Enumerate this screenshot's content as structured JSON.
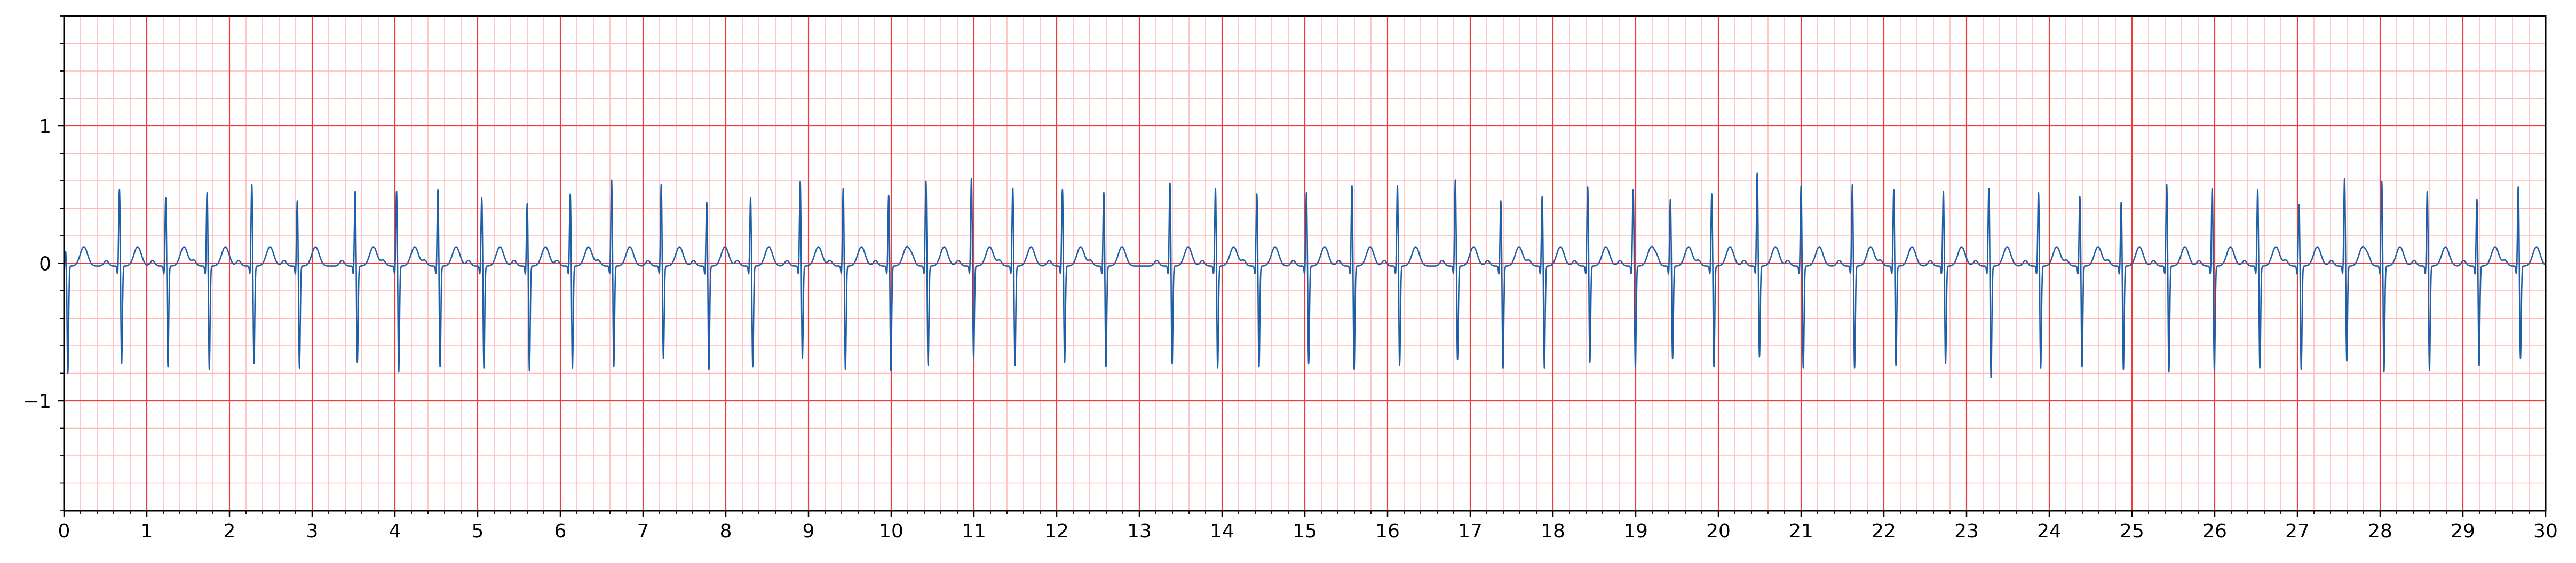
{
  "chart_data": {
    "type": "line",
    "title": "",
    "xlabel": "",
    "ylabel": "",
    "xlim": [
      0,
      30
    ],
    "ylim": [
      -1.8,
      1.8
    ],
    "grid": {
      "major": true,
      "minor": true,
      "major_x_step": 1,
      "major_y_step": 1,
      "minor_x_step": 0.2,
      "minor_y_step": 0.2,
      "major_color": "#ee3b3b",
      "minor_color": "#ffb9b9"
    },
    "x_ticks": [
      {
        "value": 0,
        "label": "0"
      },
      {
        "value": 1,
        "label": "1"
      },
      {
        "value": 2,
        "label": "2"
      },
      {
        "value": 3,
        "label": "3"
      },
      {
        "value": 4,
        "label": "4"
      },
      {
        "value": 5,
        "label": "5"
      },
      {
        "value": 6,
        "label": "6"
      },
      {
        "value": 7,
        "label": "7"
      },
      {
        "value": 8,
        "label": "8"
      },
      {
        "value": 9,
        "label": "9"
      },
      {
        "value": 10,
        "label": "10"
      },
      {
        "value": 11,
        "label": "11"
      },
      {
        "value": 12,
        "label": "12"
      },
      {
        "value": 13,
        "label": "13"
      },
      {
        "value": 14,
        "label": "14"
      },
      {
        "value": 15,
        "label": "15"
      },
      {
        "value": 16,
        "label": "16"
      },
      {
        "value": 17,
        "label": "17"
      },
      {
        "value": 18,
        "label": "18"
      },
      {
        "value": 19,
        "label": "19"
      },
      {
        "value": 20,
        "label": "20"
      },
      {
        "value": 21,
        "label": "21"
      },
      {
        "value": 22,
        "label": "22"
      },
      {
        "value": 23,
        "label": "23"
      },
      {
        "value": 24,
        "label": "24"
      },
      {
        "value": 25,
        "label": "25"
      },
      {
        "value": 26,
        "label": "26"
      },
      {
        "value": 27,
        "label": "27"
      },
      {
        "value": 28,
        "label": "28"
      },
      {
        "value": 29,
        "label": "29"
      },
      {
        "value": 30,
        "label": "30"
      }
    ],
    "y_ticks": [
      {
        "value": 1,
        "label": "1"
      },
      {
        "value": 0,
        "label": "0"
      },
      {
        "value": -1,
        "label": "−1"
      }
    ],
    "series": [
      {
        "color": "#1f5fa8",
        "beat_times": [
          0.02,
          0.67,
          1.23,
          1.73,
          2.27,
          2.82,
          3.52,
          4.02,
          4.52,
          5.05,
          5.6,
          6.12,
          6.62,
          7.22,
          7.77,
          8.3,
          8.9,
          9.42,
          9.97,
          10.42,
          10.97,
          11.47,
          12.07,
          12.57,
          13.37,
          13.92,
          14.42,
          15.02,
          15.57,
          16.12,
          16.82,
          17.37,
          17.87,
          18.42,
          18.97,
          19.42,
          19.92,
          20.47,
          21.0,
          21.62,
          22.12,
          22.72,
          23.27,
          23.87,
          24.37,
          24.87,
          25.42,
          25.97,
          26.52,
          27.02,
          27.57,
          28.02,
          28.57,
          29.17,
          29.67
        ],
        "r_peaks": [
          0.12,
          0.57,
          0.51,
          0.55,
          0.61,
          0.49,
          0.56,
          0.56,
          0.57,
          0.51,
          0.47,
          0.54,
          0.64,
          0.61,
          0.48,
          0.51,
          0.63,
          0.58,
          0.53,
          0.63,
          0.65,
          0.58,
          0.57,
          0.55,
          0.62,
          0.58,
          0.54,
          0.55,
          0.6,
          0.6,
          0.64,
          0.49,
          0.52,
          0.59,
          0.57,
          0.5,
          0.54,
          0.69,
          0.6,
          0.61,
          0.57,
          0.56,
          0.58,
          0.55,
          0.52,
          0.48,
          0.61,
          0.58,
          0.57,
          0.46,
          0.65,
          0.63,
          0.56,
          0.5,
          0.59
        ],
        "s_troughs": [
          -0.78,
          -0.72,
          -0.74,
          -0.76,
          -0.72,
          -0.75,
          -0.71,
          -0.78,
          -0.74,
          -0.75,
          -0.77,
          -0.75,
          -0.74,
          -0.68,
          -0.76,
          -0.74,
          -0.68,
          -0.76,
          -0.77,
          -0.73,
          -0.68,
          -0.73,
          -0.71,
          -0.74,
          -0.72,
          -0.75,
          -0.74,
          -0.72,
          -0.76,
          -0.73,
          -0.69,
          -0.75,
          -0.75,
          -0.71,
          -0.75,
          -0.68,
          -0.74,
          -0.67,
          -0.75,
          -0.75,
          -0.73,
          -0.72,
          -0.82,
          -0.75,
          -0.74,
          -0.76,
          -0.78,
          -0.77,
          -0.75,
          -0.76,
          -0.7,
          -0.78,
          -0.77,
          -0.73,
          -0.68
        ],
        "t_wave_amplitude": 0.14,
        "p_wave_amplitude": 0.04,
        "baseline": -0.02
      }
    ]
  }
}
